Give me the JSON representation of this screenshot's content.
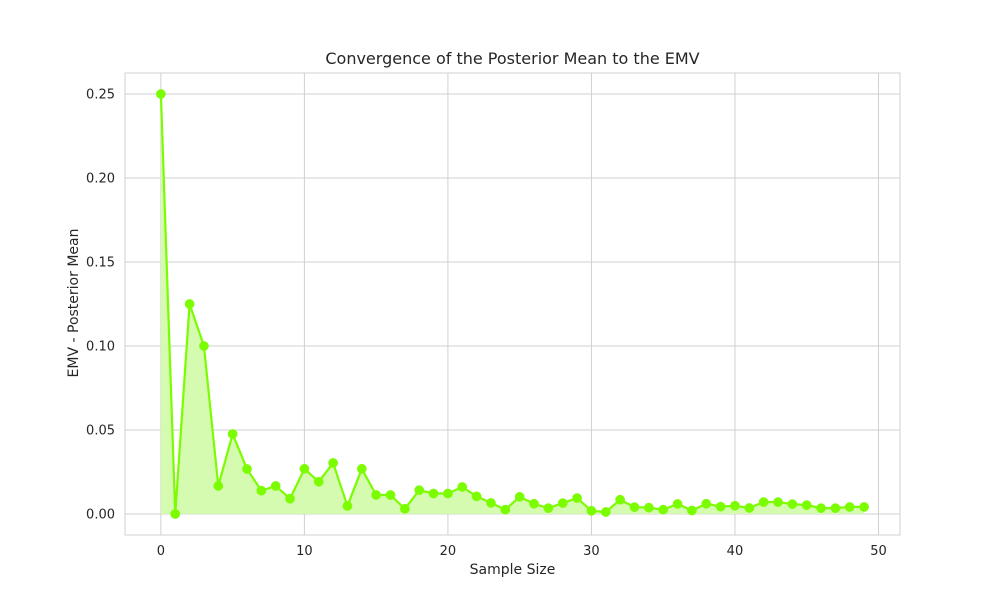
{
  "chart_data": {
    "type": "line",
    "title": "Convergence of the Posterior Mean to the EMV",
    "xlabel": "Sample Size",
    "ylabel": "EMV - Posterior Mean",
    "xlim": [
      -2.5,
      51.5
    ],
    "ylim": [
      -0.0125,
      0.2625
    ],
    "x_ticks": [
      0,
      10,
      20,
      30,
      40,
      50
    ],
    "y_ticks": [
      0.0,
      0.05,
      0.1,
      0.15,
      0.2,
      0.25
    ],
    "x_tick_labels": [
      "0",
      "10",
      "20",
      "30",
      "40",
      "50"
    ],
    "y_tick_labels": [
      "0.00",
      "0.05",
      "0.10",
      "0.15",
      "0.20",
      "0.25"
    ],
    "grid": true,
    "fill_to_zero": true,
    "markers": true,
    "series": [
      {
        "color": "#7cfc00",
        "fill_color": "#d4fbb0",
        "x": [
          0,
          1,
          2,
          3,
          4,
          5,
          6,
          7,
          8,
          9,
          10,
          11,
          12,
          13,
          14,
          15,
          16,
          17,
          18,
          19,
          20,
          21,
          22,
          23,
          24,
          25,
          26,
          27,
          28,
          29,
          30,
          31,
          32,
          33,
          34,
          35,
          36,
          37,
          38,
          39,
          40,
          41,
          42,
          43,
          44,
          45,
          46,
          47,
          48,
          49
        ],
        "values": [
          0.25,
          0.0,
          0.125,
          0.1,
          0.0167,
          0.0476,
          0.0268,
          0.0139,
          0.0167,
          0.0091,
          0.0269,
          0.0192,
          0.0304,
          0.0048,
          0.0269,
          0.0113,
          0.0113,
          0.0031,
          0.0142,
          0.0122,
          0.0122,
          0.0161,
          0.0105,
          0.0066,
          0.0026,
          0.0102,
          0.0061,
          0.0035,
          0.0065,
          0.0095,
          0.0019,
          0.0012,
          0.0085,
          0.0041,
          0.0038,
          0.0026,
          0.006,
          0.0021,
          0.0061,
          0.0044,
          0.0049,
          0.0036,
          0.0071,
          0.0071,
          0.0059,
          0.0053,
          0.0035,
          0.0035,
          0.0042,
          0.0042
        ]
      }
    ]
  }
}
